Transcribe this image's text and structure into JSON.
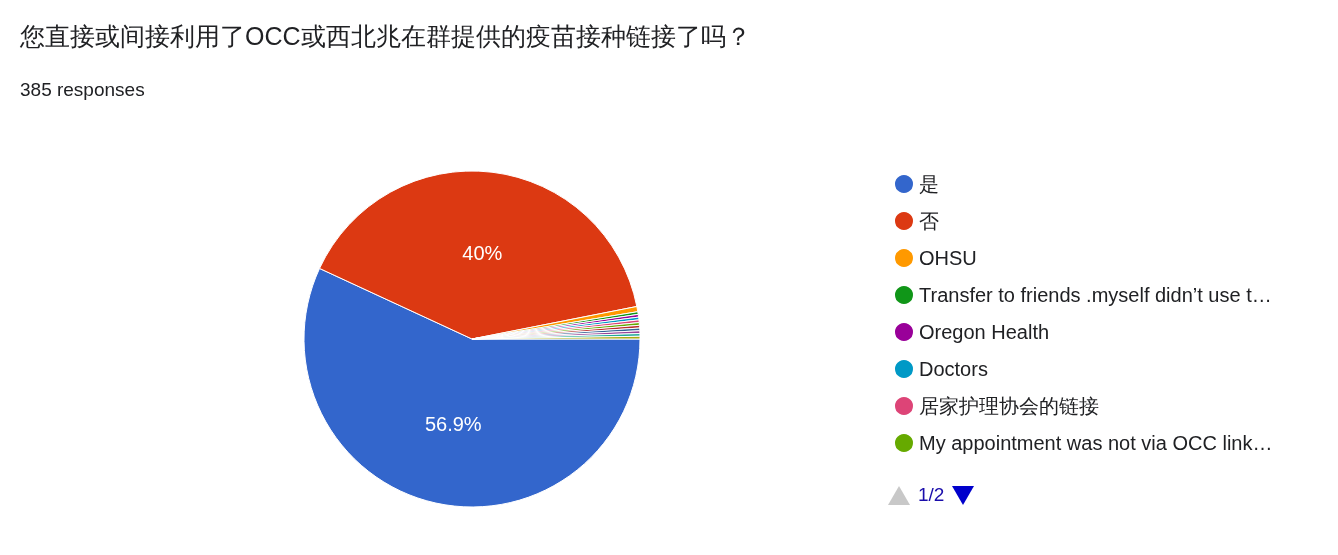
{
  "chart_data": {
    "type": "pie",
    "title": "您直接或间接利用了OCC或西北兆在群提供的疫苗接种链接了吗？",
    "subtitle": "385 responses",
    "categories": [
      "是",
      "否",
      "OHSU",
      "Transfer to friends .myself didn’t use t…",
      "Oregon Health",
      "Doctors",
      "居家护理协会的链接",
      "My appointment was not via OCC link…",
      null,
      null,
      null,
      null,
      null
    ],
    "values": [
      56.9,
      40,
      0.5,
      0.26,
      0.26,
      0.26,
      0.26,
      0.26,
      0.26,
      0.26,
      0.26,
      0.26,
      0.26
    ],
    "colors": [
      "#3366cc",
      "#dc3912",
      "#ff9900",
      "#109618",
      "#990099",
      "#0099c6",
      "#dd4477",
      "#66aa00",
      "#b82e2e",
      "#316395",
      "#994499",
      "#22aa99",
      "#aaaa11"
    ],
    "value_labels": [
      "56.9%",
      "40%",
      null,
      null,
      null,
      null,
      null,
      null,
      null,
      null,
      null,
      null,
      null
    ],
    "legend": "right",
    "annotations": [
      "1/2"
    ]
  }
}
